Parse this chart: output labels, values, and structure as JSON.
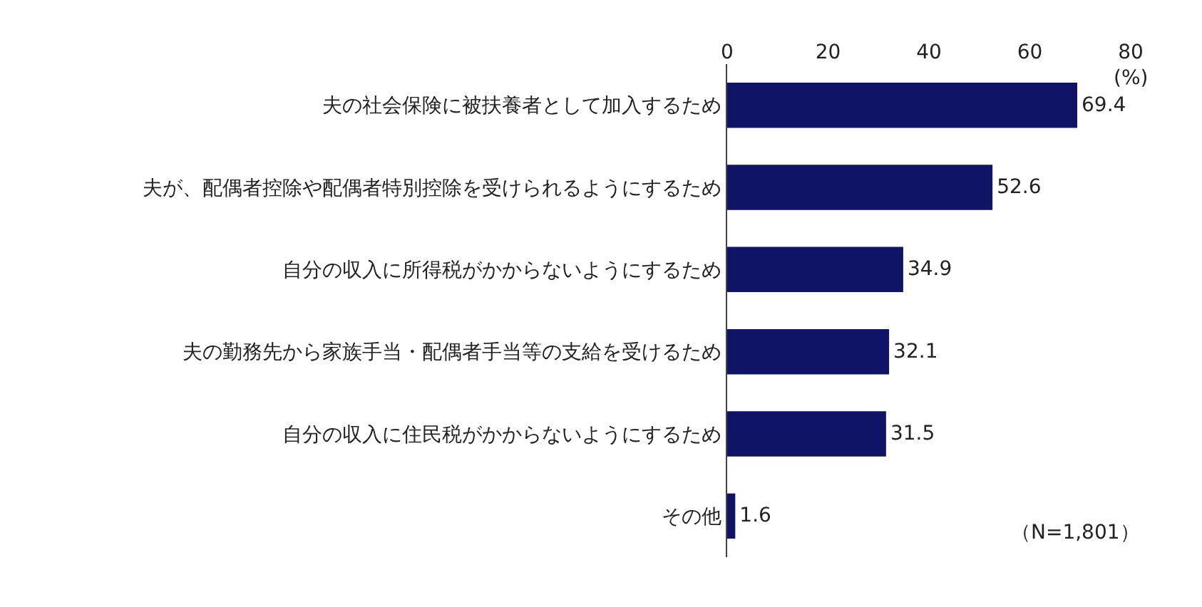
{
  "chart_data": {
    "type": "bar",
    "orientation": "horizontal",
    "xlabel": "(%)",
    "categories": [
      "夫の社会保険に被扶養者として加入するため",
      "夫が、配偶者控除や配偶者特別控除を受けられるようにするため",
      "自分の収入に所得税がかからないようにするため",
      "夫の勤務先から家族手当・配偶者手当等の支給を受けるため",
      "自分の収入に住民税がかからないようにするため",
      "その他"
    ],
    "values": [
      69.4,
      52.6,
      34.9,
      32.1,
      31.5,
      1.6
    ],
    "color": "#0f1466",
    "xlim": [
      0,
      80
    ],
    "xticks": [
      0,
      20,
      40,
      60,
      80
    ],
    "grid": false,
    "data_labels": true,
    "annotations": [
      "（N=1,801）"
    ]
  }
}
